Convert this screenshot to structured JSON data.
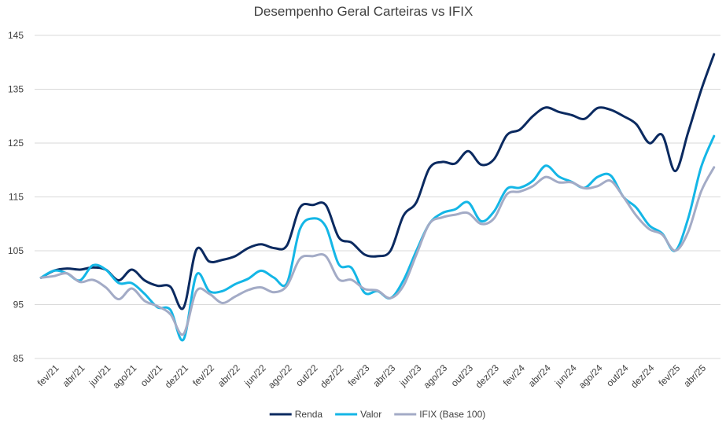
{
  "chart_data": {
    "type": "line",
    "title": "Desempenho Geral Carteiras vs IFIX",
    "categories": [
      null,
      "fev/21",
      null,
      "abr/21",
      null,
      "jun/21",
      null,
      "ago/21",
      null,
      "out/21",
      null,
      "dez/21",
      null,
      "fev/22",
      null,
      "abr/22",
      null,
      "jun/22",
      null,
      "ago/22",
      null,
      "out/22",
      null,
      "dez/22",
      null,
      "fev/23",
      null,
      "abr/23",
      null,
      "jun/23",
      null,
      "ago/23",
      null,
      "out/23",
      null,
      "dez/23",
      null,
      "fev/24",
      null,
      "abr/24",
      null,
      "jun/24",
      null,
      "ago/24",
      null,
      "out/24",
      null,
      "dez/24",
      null,
      "fev/25",
      null,
      "abr/25",
      null
    ],
    "series": [
      {
        "name": "Renda",
        "color": "#0b2a60",
        "values": [
          100,
          101.3,
          101.7,
          101.5,
          101.9,
          101.5,
          99.5,
          101.5,
          99.5,
          98.5,
          98.3,
          94.4,
          105.2,
          103,
          103.3,
          104,
          105.5,
          106.2,
          105.5,
          106,
          113,
          113.5,
          113.5,
          107.5,
          106.5,
          104.3,
          104,
          105,
          111.5,
          114,
          120.3,
          121.5,
          121.2,
          123.5,
          121,
          122,
          126.5,
          127.5,
          130,
          131.6,
          130.8,
          130.2,
          129.5,
          131.5,
          131.2,
          130,
          128.5,
          125,
          126.5,
          119.8,
          127,
          134.8,
          141.5
        ]
      },
      {
        "name": "Valor",
        "color": "#14b6e6",
        "values": [
          100,
          101.3,
          100.8,
          99.5,
          102.3,
          101.5,
          99,
          99,
          97,
          94.5,
          94,
          88.5,
          100.5,
          97.5,
          97.5,
          98.8,
          99.8,
          101.3,
          100,
          99,
          109,
          111,
          109.5,
          102.5,
          101.8,
          97.2,
          97.5,
          96.2,
          99.5,
          105,
          110,
          112,
          112.7,
          114,
          110.5,
          112.3,
          116.5,
          116.7,
          118,
          120.8,
          118.8,
          117.8,
          116.7,
          118.7,
          119,
          115,
          113,
          109.7,
          108.2,
          105,
          111,
          120.5,
          126.3
        ]
      },
      {
        "name": "IFIX (Base 100)",
        "color": "#a3abc6",
        "values": [
          100,
          100.3,
          100.8,
          99.2,
          99.6,
          98.2,
          96,
          98,
          95.7,
          94.7,
          93.2,
          89.5,
          97.5,
          97,
          95.3,
          96.5,
          97.7,
          98.2,
          97.3,
          98.5,
          103.5,
          104,
          104,
          99.7,
          99.6,
          97.9,
          97.6,
          96.2,
          98.5,
          104.3,
          110,
          111.2,
          111.7,
          112,
          110,
          111,
          115.5,
          116,
          117,
          118.7,
          117.7,
          117.7,
          116.6,
          117,
          118,
          115,
          111.5,
          109,
          108,
          105,
          108.5,
          116,
          120.5
        ]
      }
    ],
    "ylim": [
      85,
      145
    ],
    "yticks": [
      85,
      95,
      105,
      115,
      125,
      135,
      145
    ],
    "grid": true,
    "legend": "bottom"
  }
}
